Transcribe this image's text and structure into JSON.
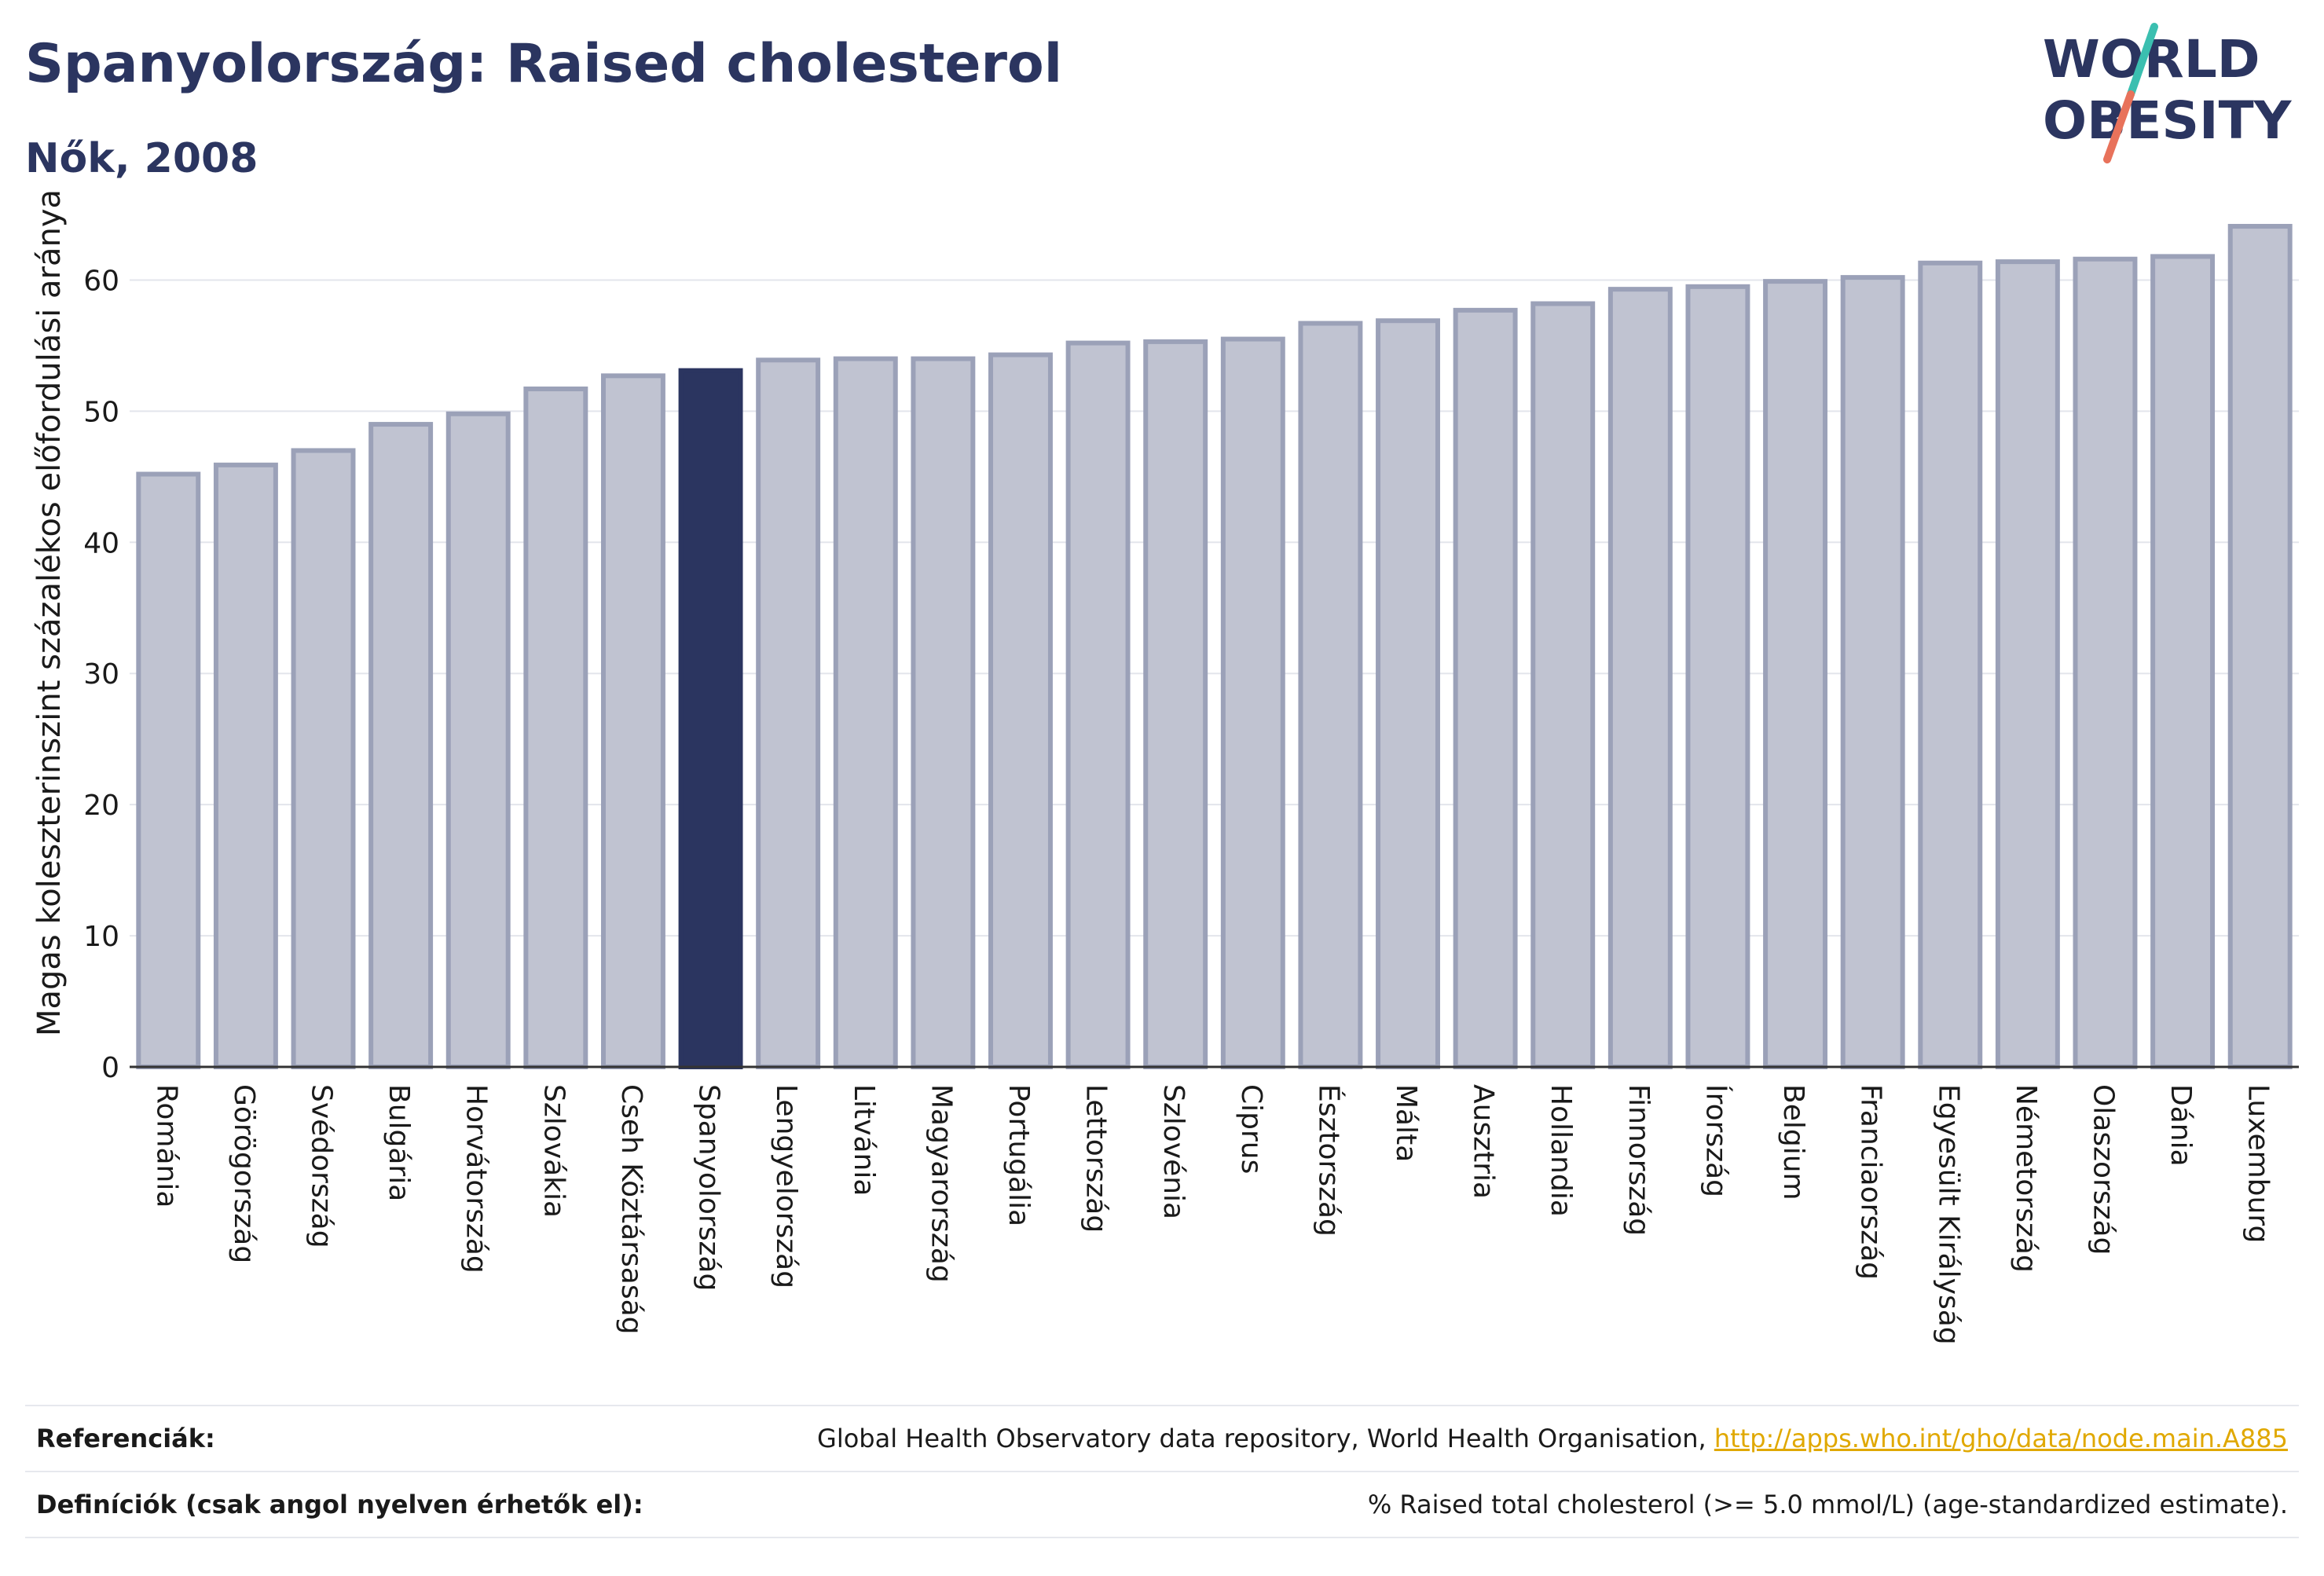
{
  "header": {
    "title": "Spanyolország: Raised cholesterol",
    "subtitle": "Nők, 2008"
  },
  "logo": {
    "line1": "WORLD",
    "line2": "OBESITY",
    "slash_colors": [
      "#3bbfb0",
      "#e8725b"
    ]
  },
  "colors": {
    "bar_fill": "#c0c3d1",
    "bar_stroke": "#9ba1b8",
    "highlight": "#2b3560",
    "grid": "#e3e5ec",
    "axis": "#333333"
  },
  "chart_data": {
    "type": "bar",
    "ylabel": "Magas koleszterinszint százalékos előfordulási aránya",
    "ylim": [
      0,
      65
    ],
    "yticks": [
      0,
      10,
      20,
      30,
      40,
      50,
      60
    ],
    "highlight": "Spanyolország",
    "categories": [
      "Románia",
      "Görögország",
      "Svédország",
      "Bulgária",
      "Horvátország",
      "Szlovákia",
      "Cseh Köztársaság",
      "Spanyolország",
      "Lengyelország",
      "Litvánia",
      "Magyarország",
      "Portugália",
      "Lettország",
      "Szlovénia",
      "Ciprus",
      "Észtország",
      "Málta",
      "Ausztria",
      "Hollandia",
      "Finnország",
      "Írország",
      "Belgium",
      "Franciaország",
      "Egyesült Királyság",
      "Németország",
      "Olaszország",
      "Dánia",
      "Luxemburg"
    ],
    "values": [
      45.2,
      45.9,
      47.0,
      49.0,
      49.8,
      51.7,
      52.7,
      53.1,
      53.9,
      54.0,
      54.0,
      54.3,
      55.2,
      55.3,
      55.5,
      56.7,
      56.9,
      57.7,
      58.2,
      59.3,
      59.5,
      59.9,
      60.2,
      61.3,
      61.4,
      61.6,
      61.8,
      64.1
    ]
  },
  "footer": {
    "references_label": "Referenciák:",
    "references_text": "Global Health Observatory data repository, World Health Organisation, ",
    "references_link": "http://apps.who.int/gho/data/node.main.A885",
    "definitions_label": "Definíciók (csak angol nyelven érhetők el):",
    "definitions_text": "% Raised total cholesterol (>= 5.0 mmol/L) (age-standardized estimate)."
  }
}
